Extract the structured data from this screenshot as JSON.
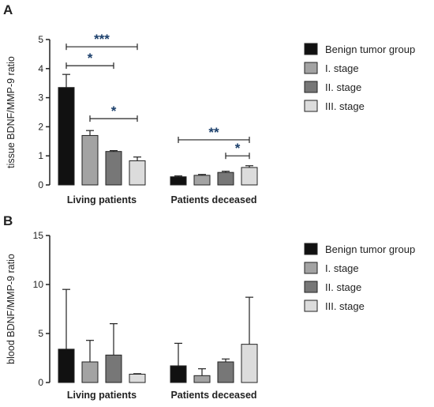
{
  "colors": {
    "series": [
      "#111111",
      "#a3a3a3",
      "#777777",
      "#dcdcdc"
    ],
    "axis": "#222222",
    "significance": "#1b3f6b"
  },
  "chart_data": [
    {
      "panel": "A",
      "type": "bar",
      "categories": [
        "Living patients",
        "Patients deceased"
      ],
      "ylabel": "tissue BDNF/MMP-9 ratio",
      "ylim": [
        0,
        5
      ],
      "yticks": [
        "0",
        "1",
        "2",
        "3",
        "4",
        "5"
      ],
      "series": [
        {
          "name": "Benign tumor group",
          "values": [
            3.35,
            0.28
          ],
          "errors": [
            0.45,
            0.03
          ]
        },
        {
          "name": "I. stage",
          "values": [
            1.7,
            0.33
          ],
          "errors": [
            0.17,
            0.03
          ]
        },
        {
          "name": "II. stage",
          "values": [
            1.15,
            0.43
          ],
          "errors": [
            0.03,
            0.04
          ]
        },
        {
          "name": "III. stage",
          "values": [
            0.83,
            0.6
          ],
          "errors": [
            0.13,
            0.06
          ]
        }
      ],
      "significance": [
        {
          "label": "***",
          "group": 0,
          "from": 0,
          "to": 3,
          "y": 4.75
        },
        {
          "label": "*",
          "group": 0,
          "from": 0,
          "to": 2,
          "y": 4.1
        },
        {
          "label": "*",
          "group": 0,
          "from": 1,
          "to": 3,
          "y": 2.28
        },
        {
          "label": "**",
          "group": 1,
          "from": 0,
          "to": 3,
          "y": 1.55
        },
        {
          "label": "*",
          "group": 1,
          "from": 2,
          "to": 3,
          "y": 1.0
        }
      ],
      "legend_position": "right"
    },
    {
      "panel": "B",
      "type": "bar",
      "categories": [
        "Living patients",
        "Patients deceased"
      ],
      "ylabel": "blood BDNF/MMP-9 ratio",
      "ylim": [
        0,
        15
      ],
      "yticks": [
        "0",
        "5",
        "10",
        "15"
      ],
      "series": [
        {
          "name": "Benign tumor group",
          "values": [
            3.4,
            1.7
          ],
          "errors": [
            6.1,
            2.3
          ]
        },
        {
          "name": "I. stage",
          "values": [
            2.1,
            0.7
          ],
          "errors": [
            2.2,
            0.7
          ]
        },
        {
          "name": "II. stage",
          "values": [
            2.8,
            2.1
          ],
          "errors": [
            3.2,
            0.3
          ]
        },
        {
          "name": "III. stage",
          "values": [
            0.85,
            3.9
          ],
          "errors": [
            0.05,
            4.8
          ]
        }
      ],
      "significance": [],
      "legend_position": "right"
    }
  ]
}
